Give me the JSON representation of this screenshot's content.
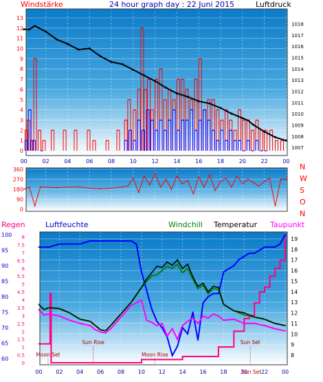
{
  "chart_data": [
    {
      "type": "line",
      "title": "24 hour graph day : 22 Juni 2015",
      "left_axis_label": "Windstärke",
      "right_axis_label": "Luftdruck",
      "x_tick_labels": [
        "00",
        "02",
        "04",
        "06",
        "08",
        "10",
        "12",
        "14",
        "16",
        "18",
        "20",
        "22",
        "00"
      ],
      "left_tick_labels": [
        "0",
        "1",
        "2",
        "3",
        "4",
        "5",
        "6",
        "7",
        "8",
        "9",
        "10",
        "11",
        "12",
        "13"
      ],
      "right_tick_labels": [
        "1007",
        "1008",
        "1009",
        "1010",
        "1011",
        "1012",
        "1013",
        "1014",
        "1015",
        "1016",
        "1017",
        "1018"
      ],
      "left_ylim": [
        0,
        13
      ],
      "right_ylim": [
        1006.7,
        1018.7
      ],
      "pressure_series": {
        "name": "Luftdruck",
        "color": "#000000",
        "x": [
          0,
          0.5,
          1,
          2,
          3,
          4,
          5,
          6,
          7,
          8,
          9,
          10,
          11,
          12,
          13,
          14,
          15,
          16,
          17,
          18,
          19,
          20,
          20.5,
          21,
          22,
          23,
          24
        ],
        "y": [
          1017.5,
          1017.5,
          1017.8,
          1017.3,
          1016.6,
          1016.2,
          1015.7,
          1015.8,
          1015.1,
          1014.6,
          1014.4,
          1013.9,
          1013.4,
          1012.9,
          1012.3,
          1011.8,
          1011.5,
          1011.1,
          1010.9,
          1010.5,
          1010.0,
          1009.6,
          1009.4,
          1009.0,
          1008.4,
          1007.9,
          1007.6
        ]
      },
      "wind_gust": {
        "color": "#ff0000",
        "x": [
          0.1,
          0.3,
          0.6,
          0.9,
          1.3,
          1.7,
          2.5,
          3.6,
          4.6,
          5.8,
          6.3,
          7.5,
          8.5,
          9.2,
          9.5,
          10.0,
          10.4,
          10.7,
          11.0,
          11.3,
          11.6,
          12.0,
          12.4,
          12.8,
          13.2,
          13.6,
          14.0,
          14.4,
          14.8,
          15.2,
          15.6,
          16.0,
          16.4,
          16.8,
          17.2,
          17.6,
          18.0,
          18.4,
          18.8,
          19.2,
          19.6,
          20.0,
          20.4,
          20.8,
          21.2,
          21.6,
          22.0,
          22.5,
          23.0,
          23.5
        ],
        "y": [
          2,
          3,
          1,
          9,
          2,
          1,
          2,
          2,
          2,
          2,
          1,
          1,
          2,
          3,
          5,
          4,
          6,
          12,
          6,
          7,
          4,
          7,
          8,
          5,
          6,
          5,
          7,
          7,
          6,
          5,
          7,
          9,
          4,
          5,
          5,
          4,
          3,
          4,
          3,
          2,
          4,
          3,
          3,
          2,
          3,
          2,
          2,
          2,
          1,
          1
        ]
      },
      "wind_speed": {
        "color": "#0000ff",
        "x": [
          0.1,
          0.4,
          0.8,
          1.5,
          9.2,
          9.6,
          10.0,
          10.4,
          10.8,
          11.2,
          11.6,
          12.0,
          12.4,
          12.8,
          13.2,
          13.6,
          14.0,
          14.4,
          14.8,
          15.2,
          15.6,
          16.0,
          16.4,
          16.8,
          17.2,
          17.6,
          18.0,
          18.4,
          18.8,
          19.2,
          19.6,
          20.0,
          20.4,
          20.8,
          21.2,
          21.6,
          22.0
        ],
        "y": [
          1,
          4,
          1,
          0,
          1,
          2,
          1,
          3,
          2,
          4,
          3,
          2,
          3,
          2,
          3,
          4,
          2,
          3,
          3,
          4,
          2,
          3,
          4,
          3,
          2,
          1,
          2,
          1,
          2,
          1,
          1,
          0,
          1,
          0,
          1,
          0,
          0
        ]
      }
    },
    {
      "type": "line",
      "title": "",
      "x_tick_labels": [
        "00",
        "02",
        "04",
        "06",
        "08",
        "10",
        "12",
        "14",
        "16",
        "18",
        "20",
        "22",
        "00"
      ],
      "left_tick_labels": [
        "0",
        "90",
        "180",
        "270",
        "360"
      ],
      "right_tick_labels": [
        "N",
        "W",
        "S",
        "O",
        "N"
      ],
      "ylim": [
        0,
        360
      ],
      "direction_series": {
        "color": "#ff0000",
        "x": [
          0,
          0.5,
          1,
          1.5,
          2,
          3,
          4,
          5,
          6,
          7,
          8,
          9,
          9.5,
          10,
          10.5,
          11,
          11.5,
          12,
          12.5,
          13,
          13.5,
          14,
          14.5,
          15,
          15.5,
          16,
          16.5,
          17,
          17.5,
          18,
          18.5,
          19,
          19.5,
          20,
          20.5,
          21,
          21.5,
          22,
          22.5,
          23,
          23.5,
          24
        ],
        "y": [
          180,
          200,
          30,
          200,
          200,
          195,
          200,
          200,
          190,
          185,
          190,
          200,
          210,
          280,
          150,
          300,
          220,
          320,
          200,
          270,
          180,
          300,
          230,
          260,
          140,
          290,
          200,
          310,
          170,
          250,
          280,
          200,
          300,
          230,
          270,
          240,
          210,
          250,
          280,
          30,
          270,
          270
        ]
      }
    },
    {
      "type": "line",
      "title": "",
      "legend": [
        "Regen",
        "Luftfeuchte",
        "Windchill",
        "Temperatur",
        "Taupunkt"
      ],
      "x_tick_labels": [
        "00",
        "02",
        "04",
        "06",
        "08",
        "10",
        "12",
        "14",
        "16",
        "18",
        "20",
        "22",
        "00"
      ],
      "rain_tick_labels": [
        "0",
        "0.5",
        "1",
        "1.5",
        "2",
        "2.5",
        "3",
        "3.5",
        "4",
        "4.5",
        "5",
        "5.5",
        "6",
        "6.5",
        "7",
        "7.5",
        "8"
      ],
      "humidity_tick_labels": [
        "60",
        "65",
        "70",
        "75",
        "80",
        "85",
        "90",
        "95",
        "100"
      ],
      "temperature_tick_labels": [
        "8",
        "9",
        "10",
        "11",
        "12",
        "13",
        "14",
        "15",
        "16",
        "17",
        "18",
        "19"
      ],
      "rain_ylim": [
        0,
        8
      ],
      "humidity_ylim": [
        59,
        100
      ],
      "temperature_ylim": [
        7.3,
        19.3
      ],
      "annotations": [
        "Moon Set",
        "Sun Rise",
        "Moon Rise",
        "Sun Set",
        "Sun Set"
      ],
      "humidity_series": {
        "name": "Luftfeuchte",
        "color": "#0000ff",
        "x": [
          0,
          1,
          2,
          3,
          4,
          5,
          6,
          7,
          8,
          9,
          9.5,
          10,
          10.5,
          11,
          11.5,
          12,
          12.5,
          13,
          13.5,
          14,
          14.5,
          15,
          15.5,
          16,
          16.5,
          17,
          17.5,
          18,
          18.5,
          19,
          19.5,
          20,
          20.5,
          21,
          21.5,
          22,
          22.5,
          23,
          23.5,
          24
        ],
        "y": [
          96,
          96,
          97,
          97,
          97,
          98,
          98,
          98,
          98,
          98,
          97,
          88,
          82,
          76,
          72,
          70,
          67,
          61,
          64,
          70,
          68,
          75,
          66,
          78,
          80,
          81,
          81,
          88,
          89,
          90,
          92,
          93,
          94,
          94,
          95,
          96,
          96,
          96,
          97,
          100
        ]
      },
      "temperature_series": {
        "name": "Temperatur",
        "color": "#000000",
        "x": [
          0,
          0.5,
          1,
          2,
          3,
          4,
          5,
          5.5,
          6,
          6.5,
          7,
          8,
          9,
          10,
          10.5,
          11,
          11.5,
          12,
          12.5,
          13,
          13.5,
          14,
          14.5,
          15,
          15.5,
          16,
          16.5,
          17,
          17.5,
          18,
          19,
          20,
          21,
          22,
          23,
          24
        ],
        "y": [
          12.8,
          12.3,
          12.5,
          12.4,
          12.0,
          11.4,
          11.2,
          10.8,
          10.4,
          10.3,
          10.8,
          11.9,
          13.0,
          14.4,
          15.2,
          15.8,
          16.4,
          16.3,
          16.8,
          16.5,
          17.0,
          16.2,
          16.6,
          15.4,
          14.5,
          14.8,
          14.0,
          14.5,
          14.4,
          12.8,
          12.2,
          12.0,
          11.6,
          11.4,
          11.0,
          10.8
        ]
      },
      "windchill_series": {
        "name": "Windchill",
        "color": "#008000",
        "x": [
          0,
          0.5,
          1,
          2,
          3,
          4,
          5,
          5.5,
          6,
          6.5,
          7,
          8,
          9,
          10,
          10.5,
          11,
          11.5,
          12,
          12.5,
          13,
          13.5,
          14,
          14.5,
          15,
          15.5,
          16,
          16.5,
          17,
          17.5,
          18,
          19,
          20,
          21,
          22,
          23,
          24
        ],
        "y": [
          12.8,
          12.3,
          12.5,
          12.4,
          12.0,
          11.4,
          11.2,
          10.8,
          10.4,
          10.3,
          10.8,
          11.9,
          13.0,
          14.4,
          15.0,
          15.5,
          15.6,
          16.0,
          16.4,
          16.2,
          16.6,
          15.8,
          16.2,
          15.2,
          14.3,
          14.6,
          13.8,
          14.3,
          14.2,
          12.8,
          12.2,
          11.8,
          11.6,
          11.4,
          11.0,
          10.8
        ]
      },
      "dewpoint_series": {
        "name": "Taupunkt",
        "color": "#ff00ff",
        "x": [
          0,
          0.5,
          1,
          2,
          3,
          4,
          5,
          5.5,
          6,
          6.5,
          7,
          8,
          9,
          10,
          10.5,
          11,
          11.5,
          12,
          12.5,
          13,
          13.5,
          14,
          14.5,
          15,
          15.5,
          16,
          16.5,
          17,
          17.5,
          18,
          19,
          20,
          21,
          22,
          23,
          24
        ],
        "y": [
          12.3,
          11.8,
          11.9,
          11.7,
          11.3,
          11.0,
          10.8,
          10.4,
          10.2,
          10.1,
          10.5,
          11.6,
          12.7,
          13.2,
          11.3,
          11.1,
          10.8,
          11.0,
          9.8,
          10.5,
          9.5,
          10.8,
          11.2,
          11.5,
          11.0,
          11.7,
          11.5,
          11.9,
          11.7,
          11.3,
          11.4,
          11.0,
          11.0,
          10.8,
          10.5,
          10.3
        ]
      },
      "rain_series": {
        "name": "Regen",
        "color": "#ff0080",
        "x": [
          0,
          0.8,
          1.1,
          1.2,
          7,
          8,
          9.9,
          10,
          13.7,
          14,
          17,
          17.5,
          18.5,
          19,
          20,
          20.5,
          21,
          21.5,
          22,
          22.5,
          23,
          23.5,
          24
        ],
        "y": [
          1.2,
          1.2,
          4.4,
          0,
          0,
          0,
          0,
          0.2,
          0.2,
          0.4,
          0.4,
          1.0,
          1.0,
          2.0,
          2.8,
          3.0,
          3.8,
          4.5,
          4.8,
          5.5,
          6.0,
          6.5,
          8.0
        ]
      }
    }
  ]
}
